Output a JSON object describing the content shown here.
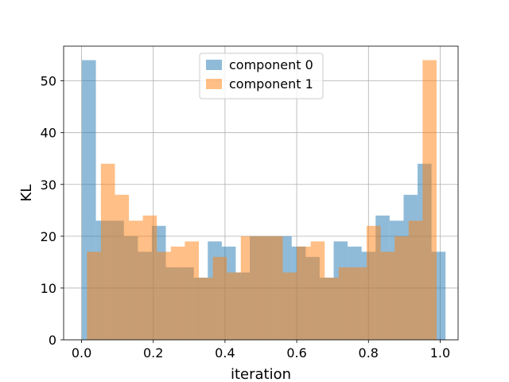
{
  "chart_data": {
    "type": "bar",
    "title": "",
    "xlabel": "iteration",
    "ylabel": "KL",
    "xlim": [
      -0.05,
      1.05
    ],
    "ylim": [
      0,
      56.7
    ],
    "xticks": [
      0.0,
      0.2,
      0.4,
      0.6,
      0.8,
      1.0
    ],
    "xtick_labels": [
      "0.0",
      "0.2",
      "0.4",
      "0.6",
      "0.8",
      "1.0"
    ],
    "yticks": [
      0,
      10,
      20,
      30,
      40,
      50
    ],
    "ytick_labels": [
      "0",
      "10",
      "20",
      "30",
      "40",
      "50"
    ],
    "grid": true,
    "legend_position": "top-center",
    "alpha": 0.5,
    "series": [
      {
        "name": "component 0",
        "color": "#1f77b4",
        "bin_start": 0.001,
        "bin_width": 0.039,
        "values": [
          54,
          23,
          23,
          20,
          17,
          22,
          14,
          14,
          12,
          19,
          18,
          13,
          20,
          20,
          20,
          18,
          16,
          12,
          19,
          18,
          17,
          24,
          23,
          28,
          34,
          17
        ]
      },
      {
        "name": "component 1",
        "color": "#ff7f0e",
        "bin_start": 0.015,
        "bin_width": 0.039,
        "values": [
          17,
          34,
          28,
          23,
          24,
          17,
          18,
          19,
          12,
          16,
          13,
          20,
          20,
          20,
          13,
          18,
          19,
          12,
          14,
          14,
          22,
          17,
          20,
          23,
          54
        ]
      }
    ]
  }
}
